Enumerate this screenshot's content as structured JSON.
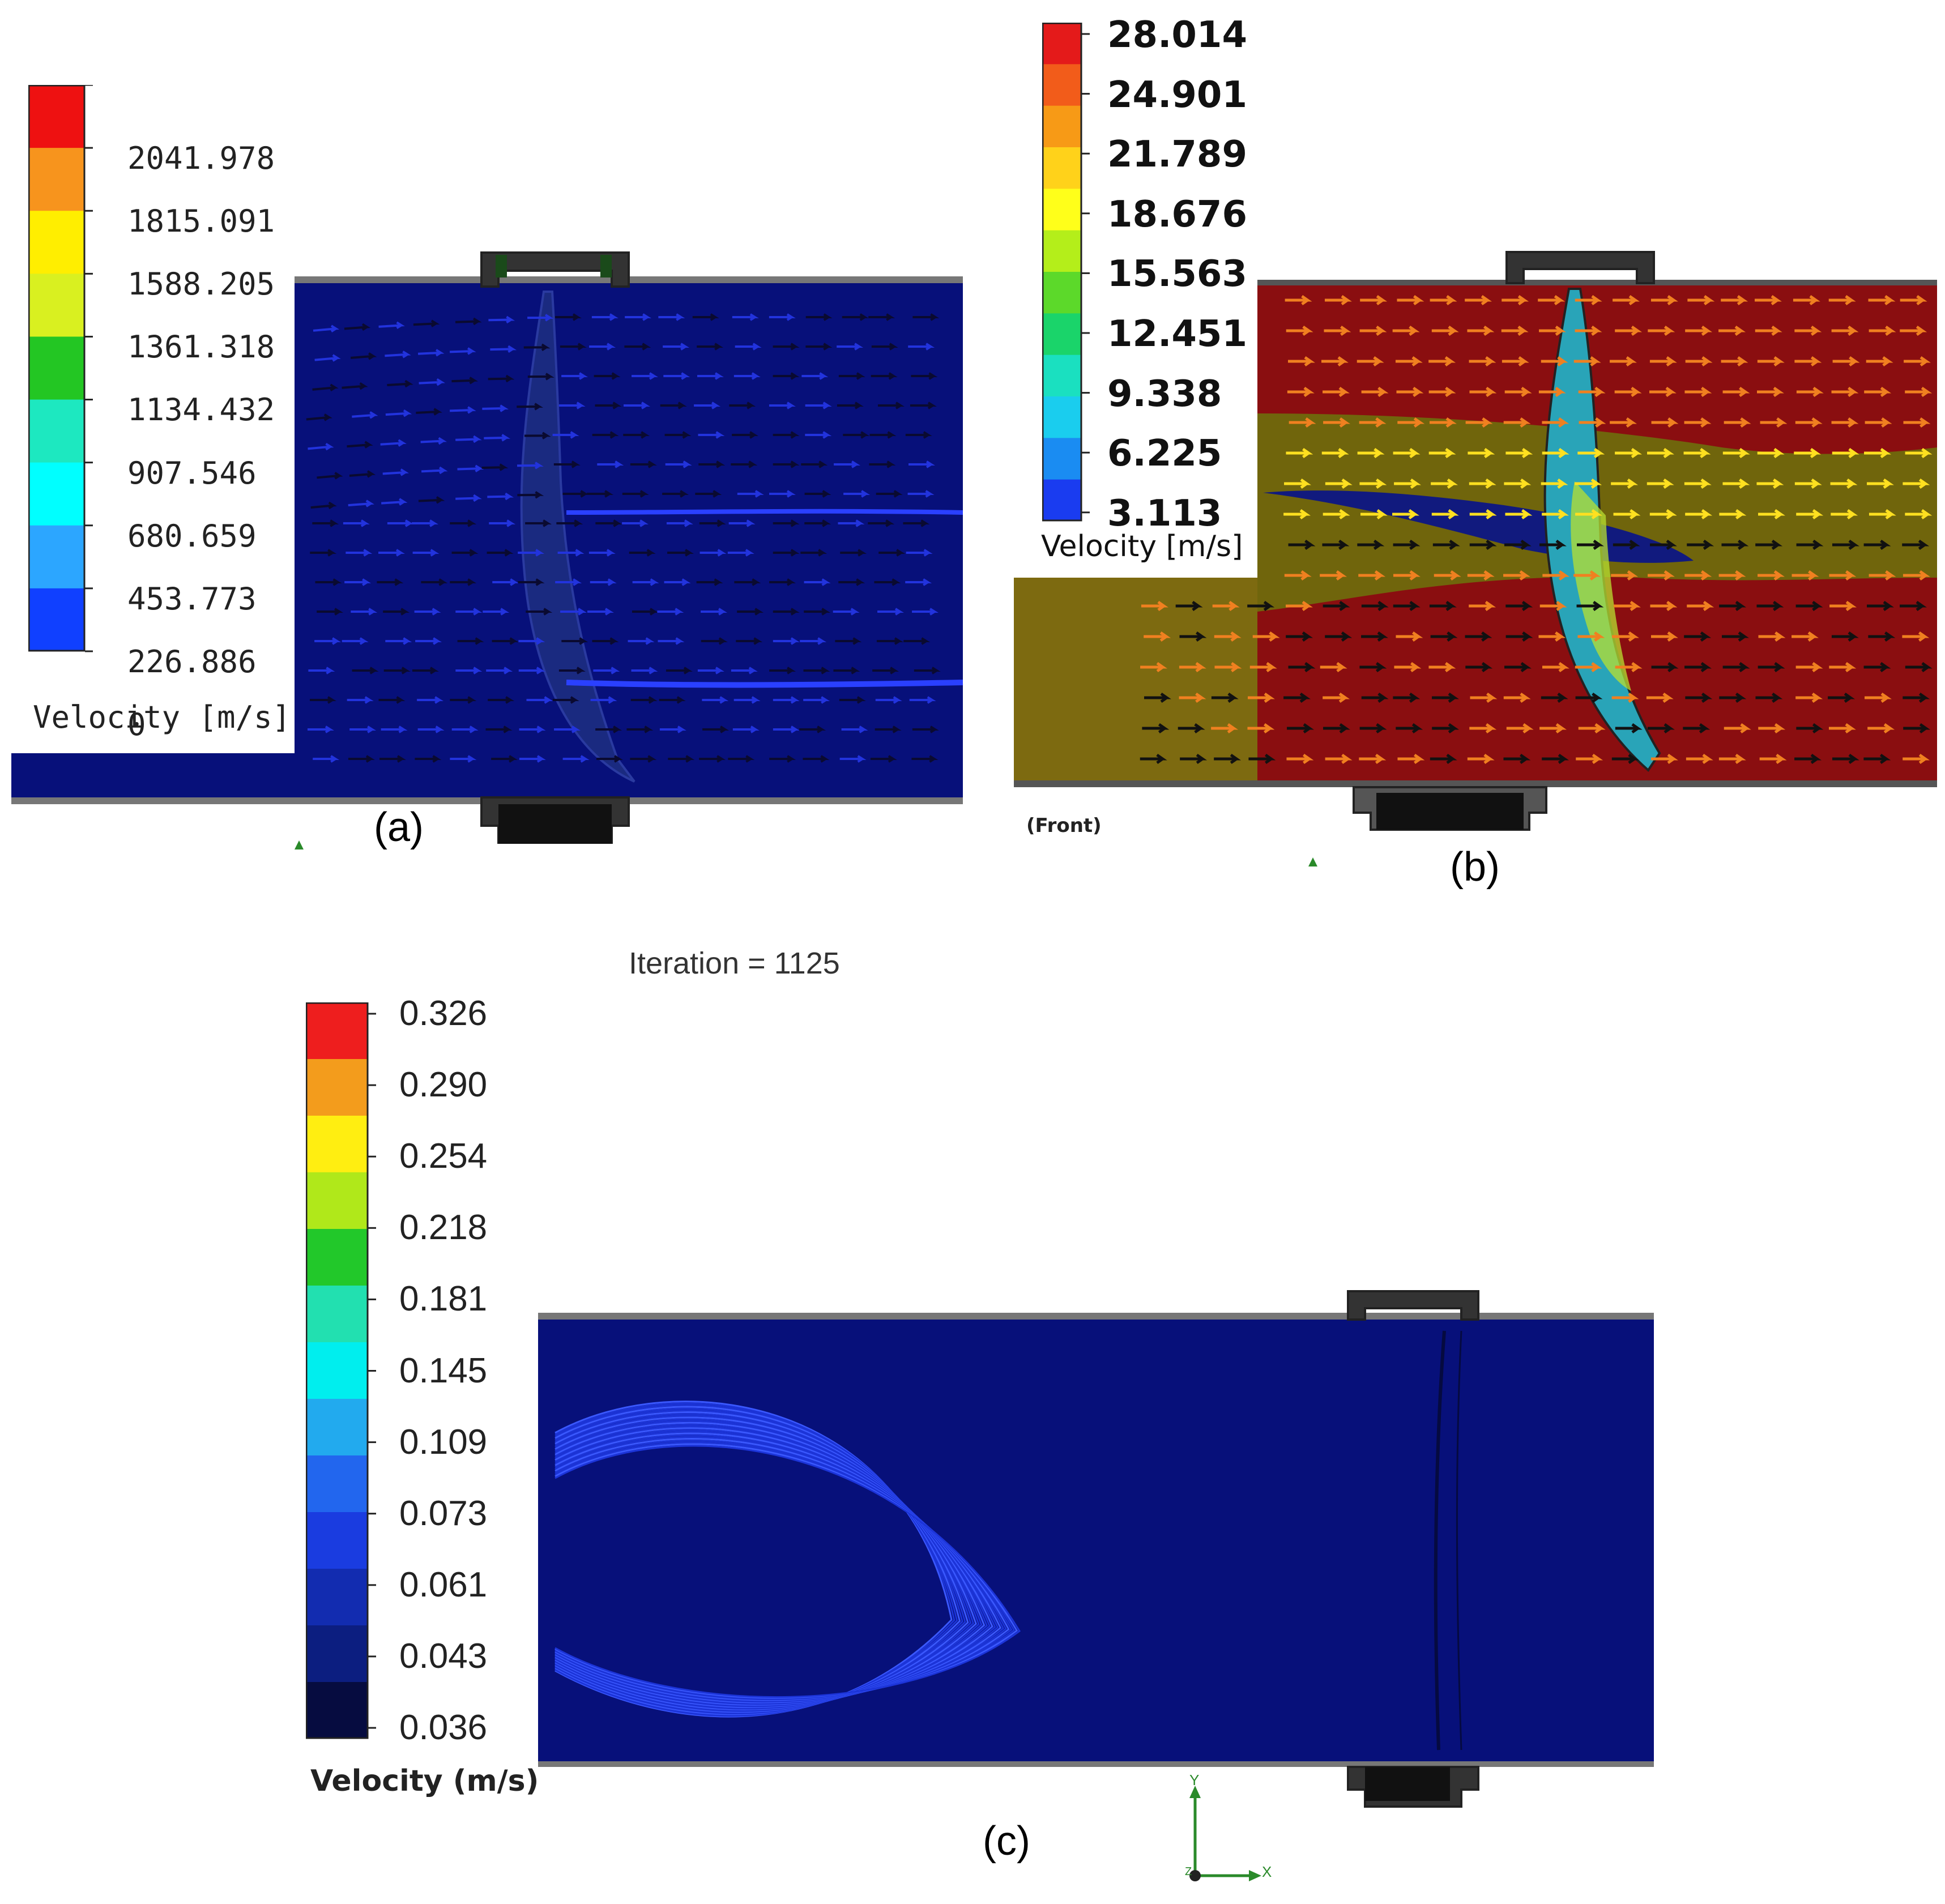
{
  "panels": [
    {
      "letter": "(a)",
      "legend": {
        "title": "Velocity [m/s]",
        "ticks": [
          "2041.978",
          "1815.091",
          "1588.205",
          "1361.318",
          "1134.432",
          "907.546",
          "680.659",
          "453.773",
          "226.886",
          "0"
        ],
        "colors": [
          "#ee1111",
          "#f7941d",
          "#ffee00",
          "#d9f020",
          "#23c623",
          "#1de8c0",
          "#00ffff",
          "#2ca6ff",
          "#1040ff"
        ]
      }
    },
    {
      "letter": "(b)",
      "view_label": "(Front)",
      "legend": {
        "title": "Velocity [m/s]",
        "ticks": [
          "28.014",
          "24.901",
          "21.789",
          "18.676",
          "15.563",
          "12.451",
          "9.338",
          "6.225",
          "3.113"
        ],
        "colors": [
          "#e41a1a",
          "#f25c1a",
          "#f79a16",
          "#ffd21a",
          "#ffff1a",
          "#b4ee1a",
          "#5cd92a",
          "#1ad46a",
          "#1ae0c0",
          "#1acdee",
          "#1a8cf2",
          "#1a3cf0"
        ]
      }
    },
    {
      "letter": "(c)",
      "iteration_text": "Iteration = 1125",
      "legend": {
        "title": "Velocity (m/s)",
        "ticks": [
          "0.326",
          "0.290",
          "0.254",
          "0.218",
          "0.181",
          "0.145",
          "0.109",
          "0.073",
          "0.061",
          "0.043",
          "0.036"
        ],
        "colors": [
          "#ee1e1e",
          "#f39c1c",
          "#ffee11",
          "#b0e81a",
          "#22c82a",
          "#22e0b0",
          "#00eeee",
          "#22aaee",
          "#2266ee",
          "#1a3ce0",
          "#122cb0",
          "#0c1e80",
          "#060c40"
        ]
      },
      "axes": {
        "y": "Y",
        "x": "X",
        "z": "Z"
      }
    }
  ]
}
